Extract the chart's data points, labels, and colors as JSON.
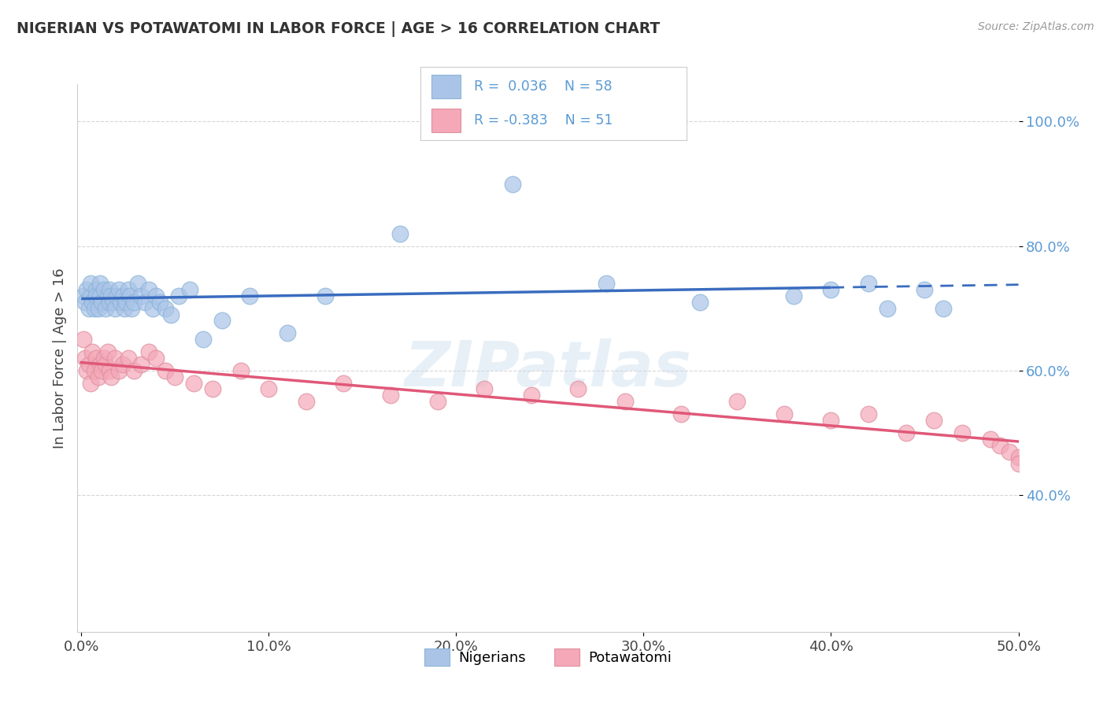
{
  "title": "NIGERIAN VS POTAWATOMI IN LABOR FORCE | AGE > 16 CORRELATION CHART",
  "source_text": "Source: ZipAtlas.com",
  "ylabel": "In Labor Force | Age > 16",
  "xlim": [
    -0.002,
    0.5
  ],
  "ylim": [
    0.18,
    1.06
  ],
  "xtick_labels": [
    "0.0%",
    "10.0%",
    "20.0%",
    "30.0%",
    "40.0%",
    "50.0%"
  ],
  "xtick_values": [
    0.0,
    0.1,
    0.2,
    0.3,
    0.4,
    0.5
  ],
  "ytick_labels": [
    "40.0%",
    "60.0%",
    "80.0%",
    "100.0%"
  ],
  "ytick_values": [
    0.4,
    0.6,
    0.8,
    1.0
  ],
  "legend_r_nigerian": "R =  0.036",
  "legend_n_nigerian": "N = 58",
  "legend_r_potawatomi": "R = -0.383",
  "legend_n_potawatomi": "N = 51",
  "nigerian_color": "#aac4e8",
  "potawatomi_color": "#f4a8b8",
  "nigerian_line_color": "#3a6cbf",
  "potawatomi_line_color": "#e05878",
  "background_color": "#ffffff",
  "watermark_text": "ZIPatlas",
  "nigerian_x": [
    0.001,
    0.002,
    0.003,
    0.004,
    0.005,
    0.005,
    0.006,
    0.007,
    0.008,
    0.008,
    0.009,
    0.01,
    0.01,
    0.011,
    0.012,
    0.013,
    0.014,
    0.015,
    0.015,
    0.016,
    0.017,
    0.018,
    0.019,
    0.02,
    0.021,
    0.022,
    0.023,
    0.024,
    0.025,
    0.026,
    0.027,
    0.028,
    0.03,
    0.032,
    0.034,
    0.036,
    0.038,
    0.04,
    0.042,
    0.045,
    0.048,
    0.052,
    0.058,
    0.065,
    0.075,
    0.09,
    0.11,
    0.13,
    0.17,
    0.23,
    0.28,
    0.33,
    0.38,
    0.4,
    0.42,
    0.43,
    0.45,
    0.46
  ],
  "nigerian_y": [
    0.72,
    0.71,
    0.73,
    0.7,
    0.72,
    0.74,
    0.71,
    0.7,
    0.73,
    0.72,
    0.7,
    0.72,
    0.74,
    0.71,
    0.73,
    0.7,
    0.72,
    0.73,
    0.71,
    0.72,
    0.71,
    0.7,
    0.72,
    0.73,
    0.71,
    0.72,
    0.7,
    0.71,
    0.73,
    0.72,
    0.7,
    0.71,
    0.74,
    0.72,
    0.71,
    0.73,
    0.7,
    0.72,
    0.71,
    0.7,
    0.69,
    0.72,
    0.73,
    0.65,
    0.68,
    0.72,
    0.66,
    0.72,
    0.82,
    0.9,
    0.74,
    0.71,
    0.72,
    0.73,
    0.74,
    0.7,
    0.73,
    0.7
  ],
  "potawatomi_x": [
    0.001,
    0.002,
    0.003,
    0.004,
    0.005,
    0.006,
    0.007,
    0.008,
    0.009,
    0.01,
    0.011,
    0.012,
    0.013,
    0.014,
    0.015,
    0.016,
    0.018,
    0.02,
    0.022,
    0.025,
    0.028,
    0.032,
    0.036,
    0.04,
    0.045,
    0.05,
    0.06,
    0.07,
    0.085,
    0.1,
    0.12,
    0.14,
    0.165,
    0.19,
    0.215,
    0.24,
    0.265,
    0.29,
    0.32,
    0.35,
    0.375,
    0.4,
    0.42,
    0.44,
    0.455,
    0.47,
    0.485,
    0.49,
    0.495,
    0.5,
    0.5
  ],
  "potawatomi_y": [
    0.65,
    0.62,
    0.6,
    0.61,
    0.58,
    0.63,
    0.6,
    0.62,
    0.59,
    0.61,
    0.6,
    0.62,
    0.61,
    0.63,
    0.6,
    0.59,
    0.62,
    0.6,
    0.61,
    0.62,
    0.6,
    0.61,
    0.63,
    0.62,
    0.6,
    0.59,
    0.58,
    0.57,
    0.6,
    0.57,
    0.55,
    0.58,
    0.56,
    0.55,
    0.57,
    0.56,
    0.57,
    0.55,
    0.53,
    0.55,
    0.53,
    0.52,
    0.53,
    0.5,
    0.52,
    0.5,
    0.49,
    0.48,
    0.47,
    0.46,
    0.45
  ],
  "dashed_line_x_start": 0.4,
  "nig_line_intercept": 0.703,
  "nig_line_slope": 0.015,
  "pot_line_intercept": 0.638,
  "pot_line_slope": -0.43
}
